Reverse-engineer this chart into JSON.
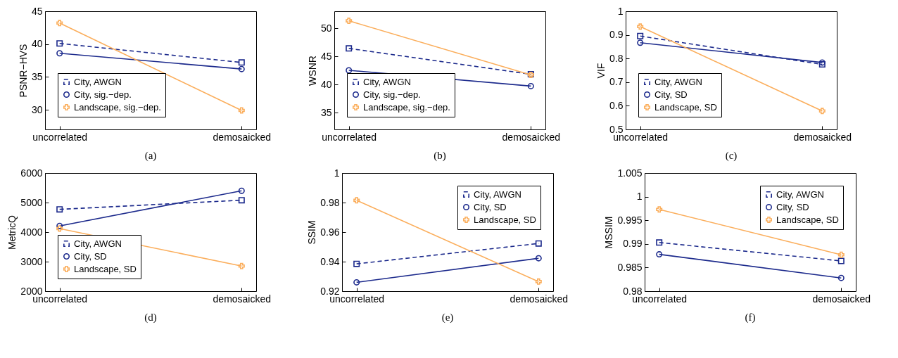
{
  "chart_data": [
    {
      "type": "line",
      "title": "(a)",
      "ylabel": "PSNR−HVS",
      "categories": [
        "uncorrelated",
        "demosaicked"
      ],
      "ylim": [
        27,
        45
      ],
      "yticks": [
        30,
        35,
        40,
        45
      ],
      "grid": false,
      "legend": "bottom left",
      "series": [
        {
          "name": "City, AWGN",
          "color": "#1c2a8c",
          "values": [
            40.1,
            37.2
          ],
          "marker": "square",
          "line_style": "dashed"
        },
        {
          "name": "City, sig.−dep.",
          "color": "#1c2a8c",
          "values": [
            38.6,
            36.2
          ],
          "marker": "circle",
          "line_style": "solid"
        },
        {
          "name": "Landscape, sig.−dep.",
          "color": "#fbae5c",
          "values": [
            43.2,
            29.9
          ],
          "marker": "cross",
          "line_style": "solid"
        }
      ]
    },
    {
      "type": "line",
      "title": "(b)",
      "ylabel": "WSNR",
      "categories": [
        "uncorrelated",
        "demosaicked"
      ],
      "ylim": [
        32,
        53
      ],
      "yticks": [
        35,
        40,
        45,
        50
      ],
      "grid": false,
      "legend": "bottom left",
      "series": [
        {
          "name": "City, AWGN",
          "color": "#1c2a8c",
          "values": [
            46.4,
            41.8
          ],
          "marker": "square",
          "line_style": "dashed"
        },
        {
          "name": "City, sig.−dep.",
          "color": "#1c2a8c",
          "values": [
            42.5,
            39.7
          ],
          "marker": "circle",
          "line_style": "solid"
        },
        {
          "name": "Landscape, sig.−dep.",
          "color": "#fbae5c",
          "values": [
            51.3,
            41.7
          ],
          "marker": "cross",
          "line_style": "solid"
        }
      ]
    },
    {
      "type": "line",
      "title": "(c)",
      "ylabel": "VIF",
      "categories": [
        "uncorrelated",
        "demosaicked"
      ],
      "ylim": [
        0.5,
        1
      ],
      "yticks": [
        0.5,
        0.6,
        0.7,
        0.8,
        0.9,
        1
      ],
      "grid": false,
      "legend": "bottom left",
      "series": [
        {
          "name": "City, AWGN",
          "color": "#1c2a8c",
          "values": [
            0.895,
            0.775
          ],
          "marker": "square",
          "line_style": "dashed"
        },
        {
          "name": "City, SD",
          "color": "#1c2a8c",
          "values": [
            0.867,
            0.783
          ],
          "marker": "circle",
          "line_style": "solid"
        },
        {
          "name": "Landscape, SD",
          "color": "#fbae5c",
          "values": [
            0.935,
            0.578
          ],
          "marker": "cross",
          "line_style": "solid"
        }
      ]
    },
    {
      "type": "line",
      "title": "(d)",
      "ylabel": "MetricQ",
      "categories": [
        "uncorrelated",
        "demosaicked"
      ],
      "ylim": [
        2000,
        6000
      ],
      "yticks": [
        2000,
        3000,
        4000,
        5000,
        6000
      ],
      "grid": false,
      "legend": "bottom left",
      "series": [
        {
          "name": "City, AWGN",
          "color": "#1c2a8c",
          "values": [
            4770,
            5080
          ],
          "marker": "square",
          "line_style": "dashed"
        },
        {
          "name": "City, SD",
          "color": "#1c2a8c",
          "values": [
            4210,
            5400
          ],
          "marker": "circle",
          "line_style": "solid"
        },
        {
          "name": "Landscape, SD",
          "color": "#fbae5c",
          "values": [
            4120,
            2850
          ],
          "marker": "cross",
          "line_style": "solid"
        }
      ]
    },
    {
      "type": "line",
      "title": "(e)",
      "ylabel": "SSIM",
      "categories": [
        "uncorrelated",
        "demosaicked"
      ],
      "ylim": [
        0.92,
        1
      ],
      "yticks": [
        0.92,
        0.94,
        0.96,
        0.98,
        1
      ],
      "grid": false,
      "legend": "top right",
      "series": [
        {
          "name": "City, AWGN",
          "color": "#1c2a8c",
          "values": [
            0.9385,
            0.9523
          ],
          "marker": "square",
          "line_style": "dashed"
        },
        {
          "name": "City, SD",
          "color": "#1c2a8c",
          "values": [
            0.926,
            0.9423
          ],
          "marker": "circle",
          "line_style": "solid"
        },
        {
          "name": "Landscape, SD",
          "color": "#fbae5c",
          "values": [
            0.9815,
            0.9265
          ],
          "marker": "cross",
          "line_style": "solid"
        }
      ]
    },
    {
      "type": "line",
      "title": "(f)",
      "ylabel": "MSSIM",
      "categories": [
        "uncorrelated",
        "demosaicked"
      ],
      "ylim": [
        0.98,
        1.005
      ],
      "yticks": [
        0.98,
        0.985,
        0.99,
        0.995,
        1,
        1.005
      ],
      "grid": false,
      "legend": "top right",
      "series": [
        {
          "name": "City, AWGN",
          "color": "#1c2a8c",
          "values": [
            0.9903,
            0.9864
          ],
          "marker": "square",
          "line_style": "dashed"
        },
        {
          "name": "City, SD",
          "color": "#1c2a8c",
          "values": [
            0.9878,
            0.9828
          ],
          "marker": "circle",
          "line_style": "solid"
        },
        {
          "name": "Landscape, SD",
          "color": "#fbae5c",
          "values": [
            0.9973,
            0.9877
          ],
          "marker": "cross",
          "line_style": "solid"
        }
      ]
    }
  ]
}
